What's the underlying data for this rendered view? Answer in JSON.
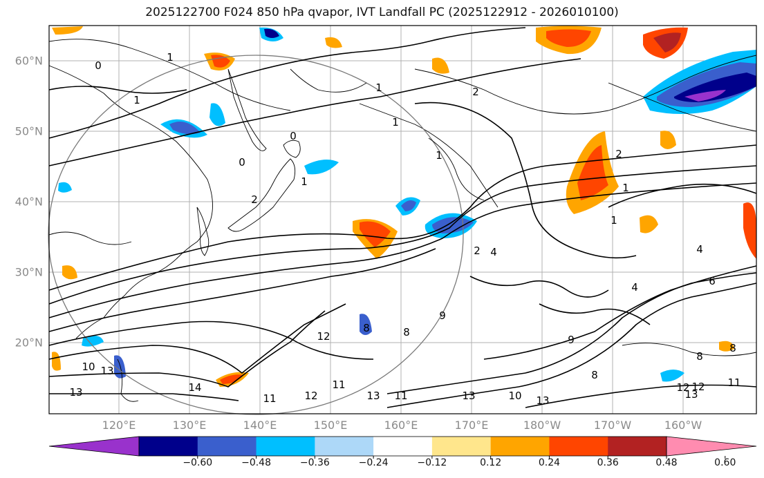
{
  "title": "2025122700 F024 850 hPa qvapor, IVT Landfall PC (2025122912 - 2026010100)",
  "map": {
    "lat_labels": [
      "60°N",
      "50°N",
      "40°N",
      "30°N",
      "20°N"
    ],
    "lon_labels": [
      "120°E",
      "130°E",
      "140°E",
      "150°E",
      "160°E",
      "170°E",
      "180°W",
      "170°W",
      "160°W"
    ],
    "grid_color": "#b0b0b0",
    "land_outline": "coastlines",
    "contour_labels": [
      "0",
      "1",
      "1",
      "1",
      "1",
      "2",
      "2",
      "1",
      "1",
      "0",
      "0",
      "2",
      "1",
      "1",
      "2",
      "4",
      "4",
      "4",
      "6",
      "8",
      "9",
      "8",
      "9",
      "8",
      "12",
      "11",
      "13",
      "13",
      "14",
      "13",
      "10",
      "12",
      "11",
      "12",
      "13",
      "11",
      "13",
      "10",
      "12",
      "13",
      "8",
      "8",
      "11"
    ]
  },
  "colorbar": {
    "tick_labels": [
      "−0.60",
      "−0.48",
      "−0.36",
      "−0.24",
      "−0.12",
      "0.12",
      "0.24",
      "0.36",
      "0.48",
      "0.60"
    ],
    "colors": [
      "#9932cc",
      "#00008b",
      "#3a5fcd",
      "#00bfff",
      "#add8f8",
      "#ffffff",
      "#ffe68c",
      "#ffa500",
      "#ff4500",
      "#b22222",
      "#ff8cb0"
    ]
  }
}
